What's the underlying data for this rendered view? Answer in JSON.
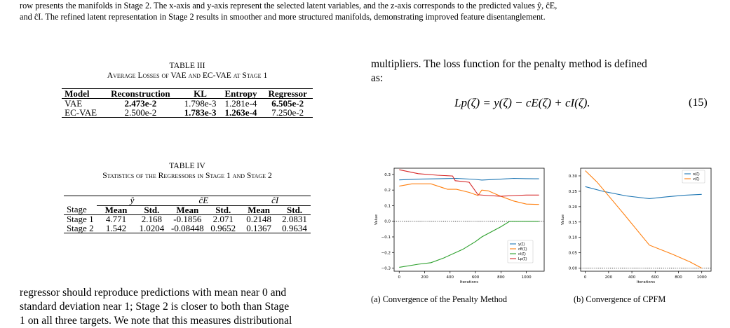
{
  "figure_caption": {
    "line1": "row presents the manifolds in Stage 2. The x-axis and y-axis represent the selected latent variables, and the z-axis corresponds to the predicted values ŷ, ĉE,",
    "line2": "and ĉI. The refined latent representation in Stage 2 results in smoother and more structured manifolds, demonstrating improved feature disentanglement."
  },
  "table3": {
    "number": "TABLE III",
    "title": "Average Losses of VAE and EC-VAE at Stage 1",
    "headers": [
      "Model",
      "Reconstruction",
      "KL",
      "Entropy",
      "Regressor"
    ],
    "rows": [
      [
        "VAE",
        "2.473e-2",
        "1.798e-3",
        "1.281e-4",
        "6.505e-2"
      ],
      [
        "EC-VAE",
        "2.500e-2",
        "1.783e-3",
        "1.263e-4",
        "7.250e-2"
      ]
    ]
  },
  "table4": {
    "number": "TABLE IV",
    "title": "Statistics of the Regressors in Stage 1 and Stage 2",
    "groups": [
      "ŷ",
      "ĉE",
      "ĉI"
    ],
    "headers": [
      "Stage",
      "Mean",
      "Std.",
      "Mean",
      "Std.",
      "Mean",
      "Std."
    ],
    "rows": [
      [
        "Stage 1",
        "4.771",
        "2.168",
        "-0.1856",
        "2.071",
        "0.2148",
        "2.0831"
      ],
      [
        "Stage 2",
        "1.542",
        "1.0204",
        "-0.08448",
        "0.9652",
        "0.1367",
        "0.9634"
      ]
    ]
  },
  "left_body": {
    "line1": "regressor should reproduce predictions with mean near 0 and",
    "line2": "standard deviation near 1; Stage 2 is closer to both than Stage",
    "line3": "1 on all three targets. We note that this measures distributional"
  },
  "right_body": {
    "line1": "multipliers. The loss function for the penalty method is defined",
    "line2": "as:",
    "equation": "Lp(ζ) = y(ζ) − cE(ζ) + cI(ζ).",
    "equation_number": "(15)"
  },
  "subfig_a_caption": "(a) Convergence of the Penalty Method",
  "subfig_b_caption": "(b) Convergence of CPFM",
  "chart_data": [
    {
      "type": "line",
      "xlabel": "Iterations",
      "ylabel": "Value",
      "xlim": [
        -40,
        1140
      ],
      "ylim": [
        -0.32,
        0.34
      ],
      "xticks": [
        "0",
        "200",
        "400",
        "600",
        "800",
        "1000"
      ],
      "yticks": [
        "−0.3",
        "−0.2",
        "−0.1",
        "0.0",
        "0.1",
        "0.2",
        "0.3"
      ],
      "legend_position": "lower-right",
      "series": [
        {
          "name": "y(ζ)",
          "color": "#1f77b4",
          "x": [
            0,
            150,
            300,
            450,
            600,
            650,
            800,
            900,
            1000,
            1100
          ],
          "y": [
            0.265,
            0.27,
            0.272,
            0.275,
            0.268,
            0.264,
            0.27,
            0.275,
            0.273,
            0.272
          ]
        },
        {
          "name": "cE(ζ)",
          "color": "#ff7f0e",
          "x": [
            0,
            100,
            250,
            380,
            450,
            550,
            620,
            650,
            700,
            800,
            900,
            1000,
            1100
          ],
          "y": [
            0.225,
            0.24,
            0.24,
            0.205,
            0.205,
            0.185,
            0.165,
            0.2,
            0.195,
            0.16,
            0.13,
            0.11,
            0.108
          ]
        },
        {
          "name": "cI(ζ)",
          "color": "#2ca02c",
          "x": [
            0,
            150,
            250,
            350,
            500,
            600,
            650,
            800,
            870,
            950,
            1100
          ],
          "y": [
            -0.295,
            -0.275,
            -0.265,
            -0.235,
            -0.18,
            -0.13,
            -0.1,
            -0.035,
            0.0,
            0.0,
            0.0
          ]
        },
        {
          "name": "Lp(ζ)",
          "color": "#d62728",
          "x": [
            0,
            150,
            300,
            420,
            440,
            550,
            620,
            700,
            800,
            900,
            1000,
            1100
          ],
          "y": [
            0.33,
            0.305,
            0.295,
            0.29,
            0.26,
            0.25,
            0.17,
            0.165,
            0.16,
            0.165,
            0.168,
            0.168
          ]
        }
      ],
      "hline": 0
    },
    {
      "type": "line",
      "xlabel": "Iterations",
      "ylabel": "Value",
      "xlim": [
        -40,
        1080
      ],
      "ylim": [
        -0.01,
        0.325
      ],
      "xticks": [
        "0",
        "200",
        "400",
        "600",
        "800",
        "1000"
      ],
      "yticks": [
        "0.00",
        "0.05",
        "0.10",
        "0.15",
        "0.20",
        "0.25",
        "0.30"
      ],
      "legend_position": "top-right",
      "series": [
        {
          "name": "o(ζ)",
          "color": "#1f77b4",
          "x": [
            0,
            150,
            350,
            550,
            700,
            850,
            1000
          ],
          "y": [
            0.265,
            0.25,
            0.235,
            0.226,
            0.232,
            0.237,
            0.24
          ]
        },
        {
          "name": "v(ζ)",
          "color": "#ff7f0e",
          "x": [
            0,
            100,
            300,
            550,
            750,
            900,
            1000
          ],
          "y": [
            0.317,
            0.28,
            0.19,
            0.075,
            0.045,
            0.02,
            0.0
          ]
        }
      ],
      "hline": 0
    }
  ]
}
